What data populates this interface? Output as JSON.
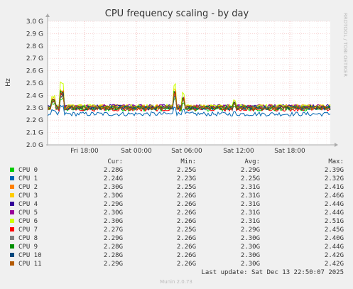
{
  "chart_data": {
    "type": "line",
    "title": "CPU frequency scaling - by day",
    "ylabel": "Hz",
    "ylim": [
      2.0,
      3.0
    ],
    "y_tick_labels": [
      "2.0 G",
      "2.1 G",
      "2.2 G",
      "2.3 G",
      "2.4 G",
      "2.5 G",
      "2.6 G",
      "2.7 G",
      "2.8 G",
      "2.9 G",
      "3.0 G"
    ],
    "x_tick_labels": [
      "Fri 18:00",
      "Sat 00:00",
      "Sat 06:00",
      "Sat 12:00",
      "Sat 18:00"
    ],
    "grid": true,
    "watermark": "RRDTOOL / TOBI OETIKER",
    "legend_headers": [
      "Cur:",
      "Min:",
      "Avg:",
      "Max:"
    ],
    "series": [
      {
        "name": "CPU 0",
        "color": "#00cc00",
        "cur": "2.28G",
        "min": "2.25G",
        "avg": "2.29G",
        "max": "2.39G",
        "base": 2.29
      },
      {
        "name": "CPU 1",
        "color": "#0066b3",
        "cur": "2.24G",
        "min": "2.23G",
        "avg": "2.25G",
        "max": "2.32G",
        "base": 2.25
      },
      {
        "name": "CPU 2",
        "color": "#ff8000",
        "cur": "2.30G",
        "min": "2.25G",
        "avg": "2.31G",
        "max": "2.41G",
        "base": 2.31
      },
      {
        "name": "CPU 3",
        "color": "#ffcc00",
        "cur": "2.30G",
        "min": "2.26G",
        "avg": "2.31G",
        "max": "2.46G",
        "base": 2.31
      },
      {
        "name": "CPU 4",
        "color": "#330099",
        "cur": "2.29G",
        "min": "2.26G",
        "avg": "2.31G",
        "max": "2.44G",
        "base": 2.31
      },
      {
        "name": "CPU 5",
        "color": "#990099",
        "cur": "2.30G",
        "min": "2.26G",
        "avg": "2.31G",
        "max": "2.44G",
        "base": 2.31
      },
      {
        "name": "CPU 6",
        "color": "#ccff00",
        "cur": "2.30G",
        "min": "2.26G",
        "avg": "2.31G",
        "max": "2.51G",
        "base": 2.31
      },
      {
        "name": "CPU 7",
        "color": "#ff0000",
        "cur": "2.27G",
        "min": "2.25G",
        "avg": "2.29G",
        "max": "2.45G",
        "base": 2.29
      },
      {
        "name": "CPU 8",
        "color": "#808080",
        "cur": "2.29G",
        "min": "2.26G",
        "avg": "2.30G",
        "max": "2.40G",
        "base": 2.3
      },
      {
        "name": "CPU 9",
        "color": "#008f00",
        "cur": "2.28G",
        "min": "2.26G",
        "avg": "2.30G",
        "max": "2.44G",
        "base": 2.3
      },
      {
        "name": "CPU 10",
        "color": "#00487d",
        "cur": "2.28G",
        "min": "2.26G",
        "avg": "2.30G",
        "max": "2.42G",
        "base": 2.3
      },
      {
        "name": "CPU 11",
        "color": "#b35a00",
        "cur": "2.29G",
        "min": "2.26G",
        "avg": "2.30G",
        "max": "2.42G",
        "base": 2.3
      }
    ],
    "last_update": "Last update: Sat Dec 13 22:50:07 2025",
    "footer": "Munin 2.0.73"
  }
}
